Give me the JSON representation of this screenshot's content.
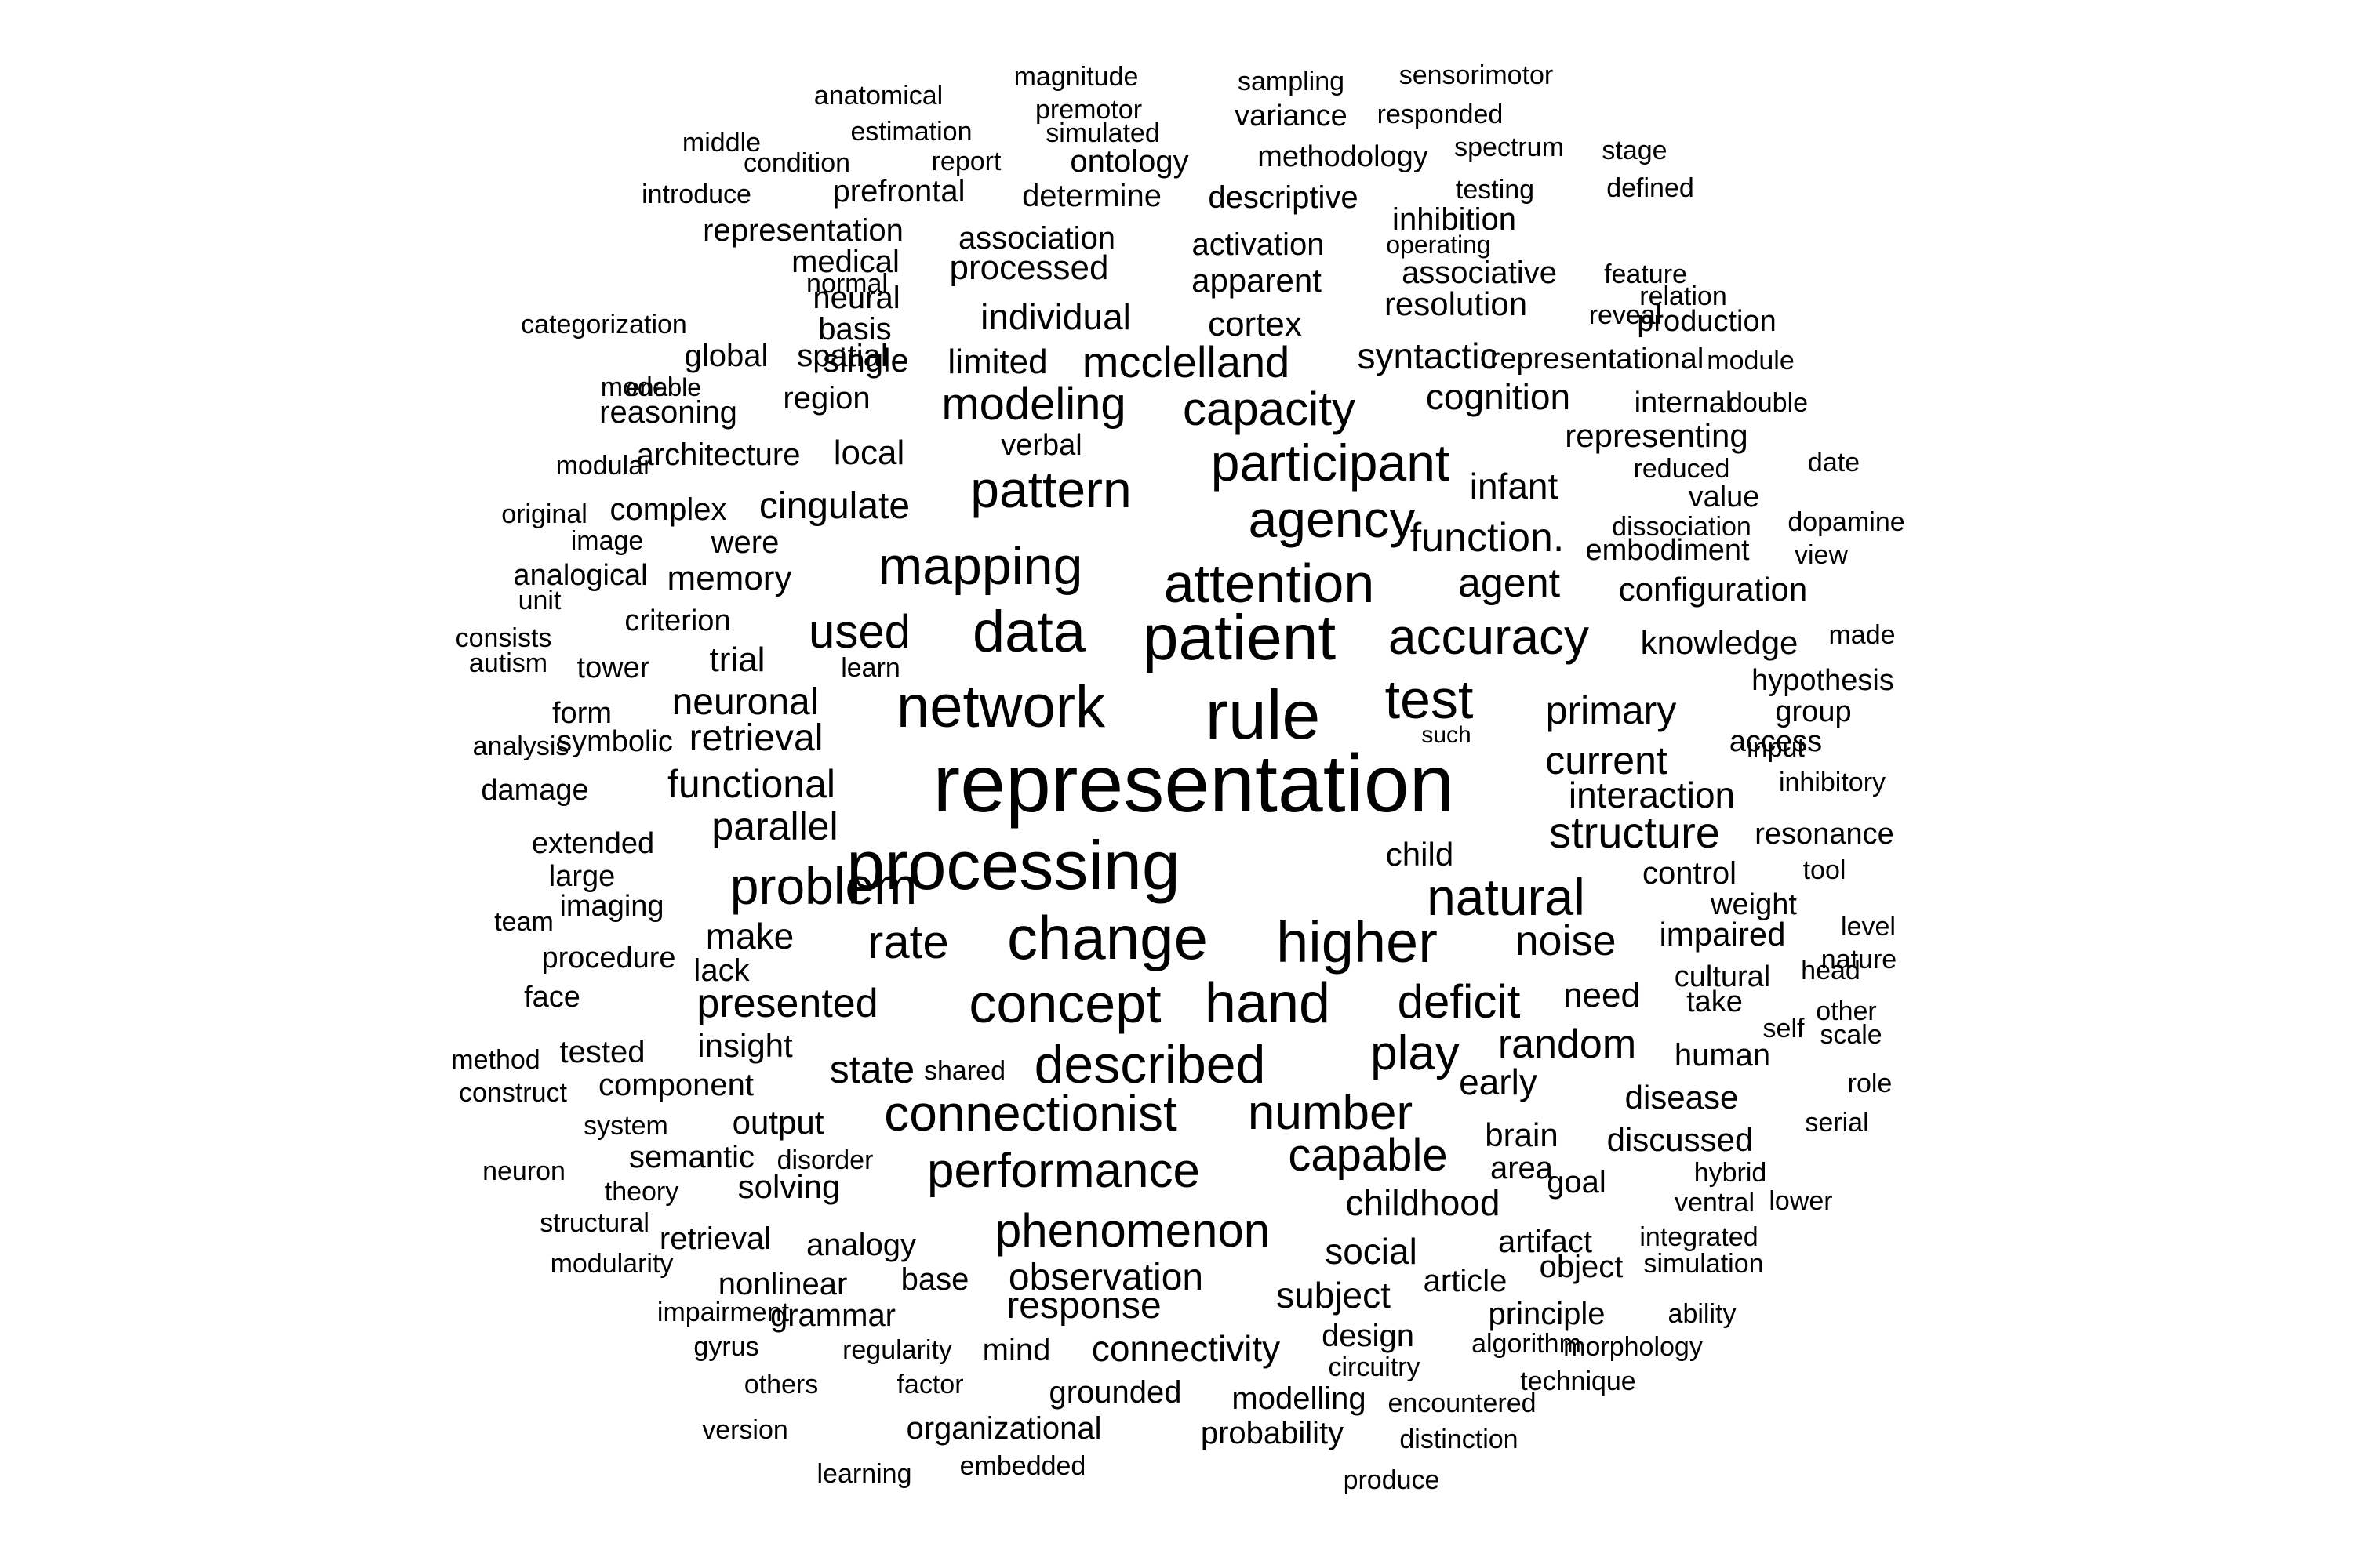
{
  "words": [
    {
      "text": "representation"
    },
    {
      "text": "processing"
    },
    {
      "text": "rule"
    },
    {
      "text": "patient"
    },
    {
      "text": "change"
    },
    {
      "text": "network"
    },
    {
      "text": "data"
    },
    {
      "text": "test"
    },
    {
      "text": "higher"
    },
    {
      "text": "concept"
    },
    {
      "text": "hand"
    },
    {
      "text": "attention"
    },
    {
      "text": "agency"
    },
    {
      "text": "participant"
    },
    {
      "text": "mapping"
    },
    {
      "text": "pattern"
    },
    {
      "text": "described"
    },
    {
      "text": "problem"
    },
    {
      "text": "natural"
    },
    {
      "text": "accuracy"
    },
    {
      "text": "connectionist"
    },
    {
      "text": "number"
    },
    {
      "text": "performance"
    },
    {
      "text": "phenomenon"
    },
    {
      "text": "play"
    },
    {
      "text": "deficit"
    },
    {
      "text": "capable"
    },
    {
      "text": "rate"
    },
    {
      "text": "used"
    },
    {
      "text": "structure"
    },
    {
      "text": "capacity"
    },
    {
      "text": "modeling"
    },
    {
      "text": "mcclelland"
    },
    {
      "text": "random"
    },
    {
      "text": "noise"
    },
    {
      "text": "function."
    },
    {
      "text": "primary"
    },
    {
      "text": "current"
    },
    {
      "text": "agent"
    },
    {
      "text": "presented"
    },
    {
      "text": "functional"
    },
    {
      "text": "neuronal"
    },
    {
      "text": "retrieval"
    },
    {
      "text": "parallel"
    },
    {
      "text": "state"
    },
    {
      "text": "cingulate"
    },
    {
      "text": "make"
    },
    {
      "text": "childhood"
    },
    {
      "text": "social"
    },
    {
      "text": "subject"
    },
    {
      "text": "observation"
    },
    {
      "text": "response"
    },
    {
      "text": "connectivity"
    },
    {
      "text": "interaction"
    },
    {
      "text": "need"
    },
    {
      "text": "early"
    },
    {
      "text": "individual"
    },
    {
      "text": "syntactic"
    },
    {
      "text": "cortex"
    },
    {
      "text": "cognition"
    },
    {
      "text": "infant"
    },
    {
      "text": "memory"
    },
    {
      "text": "child"
    },
    {
      "text": "configuration"
    },
    {
      "text": "knowledge"
    },
    {
      "text": "representing"
    },
    {
      "text": "processed"
    },
    {
      "text": "limited"
    },
    {
      "text": "apparent"
    },
    {
      "text": "resolution"
    },
    {
      "text": "local"
    },
    {
      "text": "impaired"
    },
    {
      "text": "brain"
    },
    {
      "text": "discussed"
    },
    {
      "text": "disease"
    },
    {
      "text": "human"
    },
    {
      "text": "control"
    },
    {
      "text": "insight"
    },
    {
      "text": "output"
    },
    {
      "text": "solving"
    },
    {
      "text": "grounded"
    },
    {
      "text": "organizational"
    },
    {
      "text": "modelling"
    },
    {
      "text": "probability"
    },
    {
      "text": "design"
    },
    {
      "text": "principle"
    },
    {
      "text": "article"
    },
    {
      "text": "artifact"
    },
    {
      "text": "object"
    },
    {
      "text": "goal"
    },
    {
      "text": "area"
    },
    {
      "text": "trial"
    },
    {
      "text": "region"
    },
    {
      "text": "single"
    },
    {
      "text": "reasoning"
    },
    {
      "text": "were"
    },
    {
      "text": "lack"
    },
    {
      "text": "nonlinear"
    },
    {
      "text": "grammar"
    },
    {
      "text": "base"
    },
    {
      "text": "analogy"
    },
    {
      "text": "retrieval"
    },
    {
      "text": "semantic"
    },
    {
      "text": "tested"
    },
    {
      "text": "component"
    },
    {
      "text": "mind"
    },
    {
      "text": "ontology"
    },
    {
      "text": "methodology"
    },
    {
      "text": "variance"
    },
    {
      "text": "determine"
    },
    {
      "text": "descriptive"
    },
    {
      "text": "prefrontal"
    },
    {
      "text": "association"
    },
    {
      "text": "activation"
    },
    {
      "text": "inhibition"
    },
    {
      "text": "associative"
    },
    {
      "text": "representation"
    },
    {
      "text": "medical"
    },
    {
      "text": "neural"
    },
    {
      "text": "basis"
    },
    {
      "text": "spatial"
    },
    {
      "text": "global"
    },
    {
      "text": "complex"
    },
    {
      "text": "architecture"
    },
    {
      "text": "verbal"
    },
    {
      "text": "analogical"
    },
    {
      "text": "criterion"
    },
    {
      "text": "tower"
    },
    {
      "text": "form"
    },
    {
      "text": "symbolic"
    },
    {
      "text": "damage"
    },
    {
      "text": "extended"
    },
    {
      "text": "large"
    },
    {
      "text": "imaging"
    },
    {
      "text": "procedure"
    },
    {
      "text": "face"
    },
    {
      "text": "take"
    },
    {
      "text": "cultural"
    },
    {
      "text": "weight"
    },
    {
      "text": "resonance"
    },
    {
      "text": "hypothesis"
    },
    {
      "text": "group"
    },
    {
      "text": "access"
    },
    {
      "text": "embodiment"
    },
    {
      "text": "value"
    },
    {
      "text": "internal"
    },
    {
      "text": "representational"
    },
    {
      "text": "production"
    },
    {
      "text": "magnitude"
    },
    {
      "text": "sampling"
    },
    {
      "text": "sensorimotor"
    },
    {
      "text": "anatomical"
    },
    {
      "text": "premotor"
    },
    {
      "text": "responded"
    },
    {
      "text": "estimation"
    },
    {
      "text": "simulated"
    },
    {
      "text": "condition"
    },
    {
      "text": "report"
    },
    {
      "text": "spectrum"
    },
    {
      "text": "stage"
    },
    {
      "text": "introduce"
    },
    {
      "text": "testing"
    },
    {
      "text": "defined"
    },
    {
      "text": "operating"
    },
    {
      "text": "feature"
    },
    {
      "text": "relation"
    },
    {
      "text": "middle"
    },
    {
      "text": "categorization"
    },
    {
      "text": "module"
    },
    {
      "text": "normal"
    },
    {
      "text": "model"
    },
    {
      "text": "reveal"
    },
    {
      "text": "enable"
    },
    {
      "text": "double"
    },
    {
      "text": "modular"
    },
    {
      "text": "reduced"
    },
    {
      "text": "date"
    },
    {
      "text": "original"
    },
    {
      "text": "dissociation"
    },
    {
      "text": "dopamine"
    },
    {
      "text": "image"
    },
    {
      "text": "view"
    },
    {
      "text": "unit"
    },
    {
      "text": "consists"
    },
    {
      "text": "autism"
    },
    {
      "text": "learn"
    },
    {
      "text": "made"
    },
    {
      "text": "such"
    },
    {
      "text": "analysis"
    },
    {
      "text": "input"
    },
    {
      "text": "inhibitory"
    },
    {
      "text": "team"
    },
    {
      "text": "tool"
    },
    {
      "text": "level"
    },
    {
      "text": "nature"
    },
    {
      "text": "head"
    },
    {
      "text": "other"
    },
    {
      "text": "self"
    },
    {
      "text": "scale"
    },
    {
      "text": "shared"
    },
    {
      "text": "method"
    },
    {
      "text": "construct"
    },
    {
      "text": "role"
    },
    {
      "text": "system"
    },
    {
      "text": "serial"
    },
    {
      "text": "neuron"
    },
    {
      "text": "disorder"
    },
    {
      "text": "hybrid"
    },
    {
      "text": "theory"
    },
    {
      "text": "ventral"
    },
    {
      "text": "lower"
    },
    {
      "text": "structural"
    },
    {
      "text": "integrated"
    },
    {
      "text": "modularity"
    },
    {
      "text": "simulation"
    },
    {
      "text": "impairment"
    },
    {
      "text": "ability"
    },
    {
      "text": "gyrus"
    },
    {
      "text": "regularity"
    },
    {
      "text": "algorithm"
    },
    {
      "text": "morphology"
    },
    {
      "text": "circuitry"
    },
    {
      "text": "others"
    },
    {
      "text": "factor"
    },
    {
      "text": "technique"
    },
    {
      "text": "encountered"
    },
    {
      "text": "version"
    },
    {
      "text": "distinction"
    },
    {
      "text": "learning"
    },
    {
      "text": "embedded"
    },
    {
      "text": "produce"
    }
  ]
}
